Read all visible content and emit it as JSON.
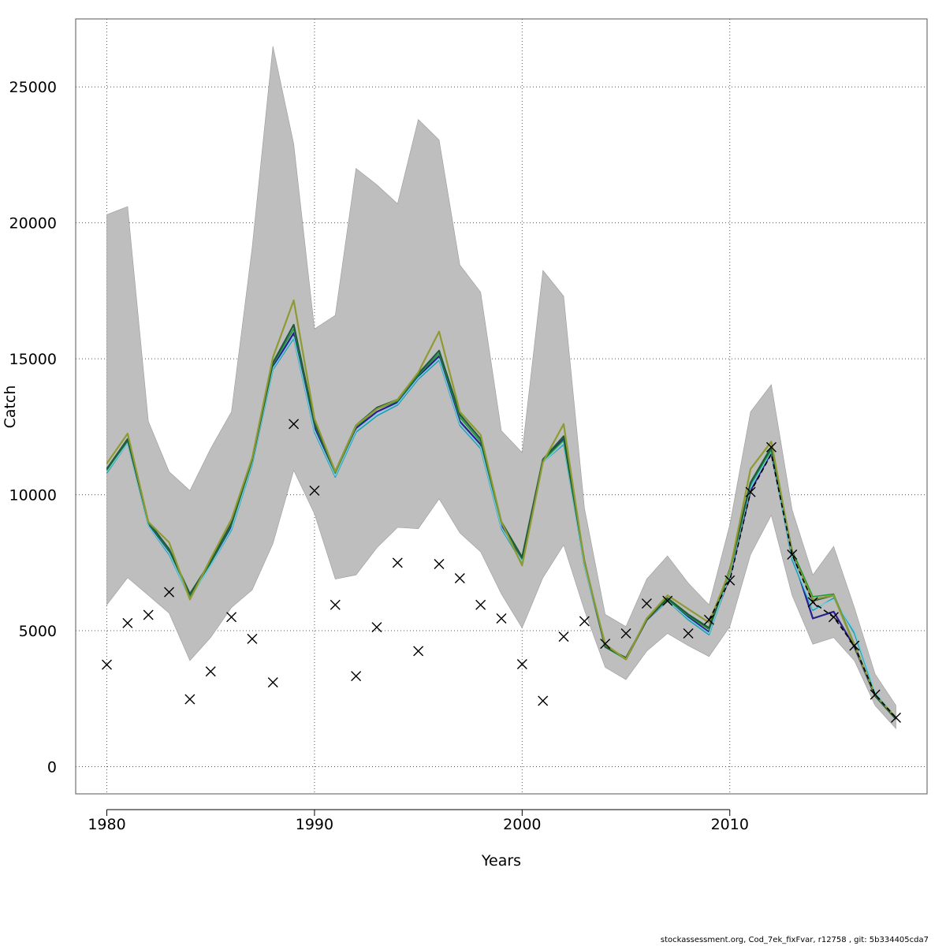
{
  "footer": "stockassessment.org, Cod_7ek_fixFvar, r12758 , git: 5b334405cda7",
  "chart_data": {
    "type": "line",
    "xlabel": "Years",
    "ylabel": "Catch",
    "xlim": [
      1978.5,
      2019.5
    ],
    "ylim": [
      -1000,
      27500
    ],
    "xticks": [
      1980,
      1990,
      2000,
      2010
    ],
    "yticks": [
      0,
      5000,
      10000,
      15000,
      20000,
      25000
    ],
    "grid": true,
    "years": [
      1980,
      1981,
      1982,
      1983,
      1984,
      1985,
      1986,
      1987,
      1988,
      1989,
      1990,
      1991,
      1992,
      1993,
      1994,
      1995,
      1996,
      1997,
      1998,
      1999,
      2000,
      2001,
      2002,
      2003,
      2004,
      2005,
      2006,
      2007,
      2008,
      2009,
      2010,
      2011,
      2012,
      2013,
      2014,
      2015,
      2016,
      2017,
      2018
    ],
    "confidence_band": {
      "color": "#bebebe",
      "upper": [
        20300,
        20600,
        12700,
        10850,
        10150,
        11700,
        13050,
        19100,
        26500,
        22900,
        16100,
        16600,
        22000,
        21400,
        20700,
        23800,
        23050,
        18450,
        17450,
        12350,
        11550,
        18250,
        17300,
        9500,
        5600,
        5150,
        6900,
        7750,
        6750,
        5950,
        8900,
        13050,
        14050,
        9450,
        7050,
        8100,
        5850,
        3400,
        2250
      ],
      "lower": [
        5950,
        6950,
        6300,
        5650,
        3900,
        4750,
        5850,
        6500,
        8200,
        10900,
        9300,
        6900,
        7050,
        8050,
        8800,
        8750,
        9850,
        8600,
        7900,
        6350,
        5100,
        6950,
        8150,
        5750,
        3650,
        3200,
        4250,
        4900,
        4450,
        4050,
        5150,
        7800,
        9250,
        6300,
        4500,
        4750,
        3900,
        2250,
        1400
      ]
    },
    "series": [
      {
        "color": "#2a1f8f",
        "width": 2.2,
        "dash": "",
        "values": [
          10900,
          11950,
          8900,
          7900,
          6250,
          7450,
          8850,
          11200,
          14700,
          15950,
          12500,
          10800,
          12450,
          13050,
          13400,
          14350,
          15100,
          12700,
          11850,
          8850,
          7600,
          11250,
          12050,
          7400,
          4450,
          3950,
          5400,
          6100,
          5500,
          4950,
          7000,
          10150,
          11550,
          7800,
          5450,
          5700,
          4400,
          2600,
          1800
        ]
      },
      {
        "color": "#1f9bb0",
        "width": 1.6,
        "dash": "",
        "values": [
          10800,
          11900,
          8850,
          7800,
          6200,
          7400,
          8700,
          11100,
          14600,
          15750,
          12300,
          10650,
          12300,
          12900,
          13300,
          14250,
          14950,
          12550,
          11700,
          8750,
          7500,
          11200,
          11850,
          7350,
          4400,
          3950,
          5400,
          6100,
          5400,
          4850,
          7050,
          10300,
          11600,
          7600,
          5750,
          6200,
          4900,
          2700,
          1750
        ]
      },
      {
        "color": "#7ecfe0",
        "width": 1.4,
        "dash": "",
        "values": [
          10850,
          11900,
          8850,
          7850,
          6200,
          7400,
          8750,
          11150,
          14650,
          15800,
          12350,
          10700,
          12350,
          12950,
          13350,
          14300,
          15000,
          12600,
          11750,
          8800,
          7550,
          11200,
          11900,
          7350,
          4450,
          3950,
          5400,
          6100,
          5450,
          4900,
          7050,
          10250,
          11600,
          7700,
          5800,
          6150,
          5000,
          2750,
          1800
        ]
      },
      {
        "color": "#1a9a3a",
        "width": 1.6,
        "dash": "",
        "values": [
          10900,
          12000,
          8950,
          7950,
          6300,
          7500,
          8900,
          11250,
          14800,
          16100,
          12600,
          10800,
          12500,
          13150,
          13450,
          14400,
          15200,
          12850,
          11950,
          8950,
          7650,
          11250,
          12000,
          7500,
          4400,
          3950,
          5400,
          6150,
          5550,
          5050,
          7150,
          10400,
          11650,
          7950,
          6250,
          6350,
          4500,
          2650,
          1750
        ]
      },
      {
        "color": "#1f5b3a",
        "width": 2.2,
        "dash": "",
        "values": [
          10950,
          12050,
          9000,
          8000,
          6350,
          7550,
          8950,
          11300,
          14850,
          16250,
          12650,
          10850,
          12550,
          13200,
          13500,
          14450,
          15300,
          12950,
          12050,
          9000,
          7700,
          11300,
          12150,
          7550,
          4400,
          4000,
          5400,
          6200,
          5600,
          5100,
          7250,
          10450,
          11750,
          7900,
          6100,
          6300,
          4450,
          2600,
          1750
        ]
      },
      {
        "color": "#8f9a30",
        "width": 2.2,
        "dash": "",
        "values": [
          11150,
          12250,
          9000,
          8250,
          6150,
          7650,
          9100,
          11350,
          15050,
          17150,
          12800,
          10850,
          12550,
          13150,
          13500,
          14500,
          16000,
          13050,
          12200,
          9000,
          7400,
          11200,
          12600,
          7500,
          4500,
          3950,
          5450,
          6300,
          5800,
          5300,
          7200,
          10950,
          11950,
          7850,
          6150,
          6300,
          4450,
          2650,
          1800
        ]
      },
      {
        "color": "#000000",
        "width": 1.6,
        "dash": "6,4",
        "values": [
          null,
          null,
          null,
          null,
          null,
          null,
          null,
          null,
          null,
          null,
          null,
          null,
          null,
          null,
          null,
          null,
          null,
          null,
          null,
          null,
          null,
          null,
          null,
          null,
          null,
          null,
          null,
          null,
          null,
          5400,
          6850,
          10100,
          11500,
          7800,
          6050,
          5500,
          4450,
          2650,
          1800
        ]
      }
    ],
    "observed": {
      "marker": "x",
      "values": [
        3750,
        5280,
        5580,
        6420,
        2480,
        3500,
        5500,
        4700,
        3100,
        12600,
        10150,
        5950,
        3330,
        5130,
        7500,
        4250,
        7450,
        6930,
        5950,
        5450,
        3770,
        2420,
        4780,
        5350,
        4520,
        4900,
        6000,
        6100,
        4900,
        5400,
        6850,
        10100,
        11750,
        7800,
        6050,
        5500,
        4450,
        2650,
        1800
      ]
    }
  }
}
